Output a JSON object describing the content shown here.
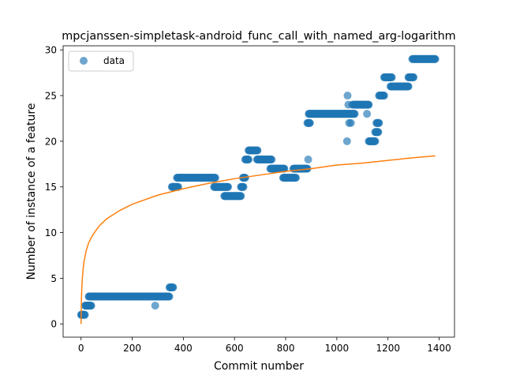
{
  "chart_data": {
    "type": "scatter",
    "title": "mpcjanssen-simpletask-android_func_call_with_named_arg-logarithm",
    "xlabel": "Commit number",
    "ylabel": "Number of instance of a feature",
    "xlim": [
      -70,
      1460
    ],
    "ylim": [
      -1.45,
      30.45
    ],
    "xticks": [
      0,
      200,
      400,
      600,
      800,
      1000,
      1200,
      1400
    ],
    "yticks": [
      0,
      5,
      10,
      15,
      20,
      25,
      30
    ],
    "grid": false,
    "legend": {
      "position": "upper-left",
      "entries": [
        "data"
      ]
    },
    "colors": {
      "data": "#1f77b4",
      "fit": "#ff7f0e"
    },
    "series": [
      {
        "name": "data",
        "kind": "scatter",
        "segments": [
          {
            "x_start": 0,
            "x_end": 15,
            "y": 1
          },
          {
            "x_start": 16,
            "x_end": 40,
            "y": 2
          },
          {
            "x_start": 30,
            "x_end": 345,
            "y": 3
          },
          {
            "x_start": 346,
            "x_end": 360,
            "y": 4
          },
          {
            "x_start": 355,
            "x_end": 380,
            "y": 15
          },
          {
            "x_start": 375,
            "x_end": 525,
            "y": 16
          },
          {
            "x_start": 520,
            "x_end": 575,
            "y": 15
          },
          {
            "x_start": 560,
            "x_end": 625,
            "y": 14
          },
          {
            "x_start": 625,
            "x_end": 635,
            "y": 15
          },
          {
            "x_start": 633,
            "x_end": 642,
            "y": 16
          },
          {
            "x_start": 642,
            "x_end": 655,
            "y": 18
          },
          {
            "x_start": 655,
            "x_end": 690,
            "y": 19
          },
          {
            "x_start": 688,
            "x_end": 745,
            "y": 18
          },
          {
            "x_start": 740,
            "x_end": 795,
            "y": 17
          },
          {
            "x_start": 790,
            "x_end": 840,
            "y": 16
          },
          {
            "x_start": 830,
            "x_end": 885,
            "y": 17
          },
          {
            "x_start": 885,
            "x_end": 895,
            "y": 22
          },
          {
            "x_start": 890,
            "x_end": 1070,
            "y": 23
          },
          {
            "x_start": 1065,
            "x_end": 1125,
            "y": 24
          },
          {
            "x_start": 1125,
            "x_end": 1150,
            "y": 20
          },
          {
            "x_start": 1150,
            "x_end": 1162,
            "y": 21
          },
          {
            "x_start": 1155,
            "x_end": 1165,
            "y": 22
          },
          {
            "x_start": 1165,
            "x_end": 1185,
            "y": 25
          },
          {
            "x_start": 1185,
            "x_end": 1215,
            "y": 27
          },
          {
            "x_start": 1210,
            "x_end": 1280,
            "y": 26
          },
          {
            "x_start": 1280,
            "x_end": 1300,
            "y": 27
          },
          {
            "x_start": 1295,
            "x_end": 1385,
            "y": 29
          }
        ],
        "points": [
          {
            "x": 290,
            "y": 2
          },
          {
            "x": 888,
            "y": 18
          },
          {
            "x": 1040,
            "y": 20
          },
          {
            "x": 1042,
            "y": 25
          },
          {
            "x": 1045,
            "y": 24
          },
          {
            "x": 1048,
            "y": 22
          },
          {
            "x": 1055,
            "y": 22
          },
          {
            "x": 1060,
            "y": 24
          },
          {
            "x": 1118,
            "y": 23
          }
        ]
      },
      {
        "name": "",
        "kind": "line",
        "x": [
          0,
          1,
          2,
          3,
          5,
          8,
          12,
          20,
          30,
          45,
          70,
          100,
          150,
          200,
          300,
          400,
          500,
          600,
          700,
          800,
          900,
          1000,
          1100,
          1200,
          1300,
          1385
        ],
        "y": [
          0.0,
          2.0,
          3.1,
          3.9,
          4.9,
          6.0,
          6.9,
          8.0,
          8.9,
          9.7,
          10.7,
          11.5,
          12.4,
          13.1,
          14.1,
          14.8,
          15.4,
          15.9,
          16.3,
          16.7,
          17.0,
          17.4,
          17.6,
          17.9,
          18.2,
          18.4
        ]
      }
    ]
  }
}
